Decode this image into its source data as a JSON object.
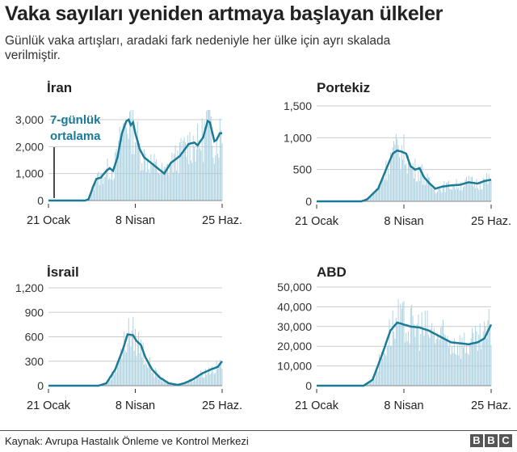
{
  "title": "Vaka sayıları yeniden artmaya başlayan ülkeler",
  "subtitle": "Günlük vaka artışları, aradaki fark nedeniyle her ülke için ayrı skalada verilmiştir.",
  "footer": "Kaynak: Avrupa Hastalık Önleme ve Kontrol Merkezi",
  "logo": [
    "B",
    "B",
    "C"
  ],
  "colors": {
    "line": "#1b7b97",
    "bar": "#a8cfdf",
    "grid": "#cccccc"
  },
  "chart_data": [
    {
      "type": "bar+line",
      "title": "İran",
      "annotation": [
        "7-günlük",
        "ortalama"
      ],
      "x_ticks": [
        "21 Ocak",
        "8 Nisan",
        "25 Haz."
      ],
      "x_tick_days": [
        0,
        78,
        156
      ],
      "yticks": [
        0,
        1000,
        2000,
        3000
      ],
      "ytick_labels": [
        "0",
        "1,000",
        "2,000",
        "3,000"
      ],
      "ylim": [
        0,
        3500
      ],
      "avg": [
        [
          0,
          0
        ],
        [
          33,
          0
        ],
        [
          36,
          50
        ],
        [
          40,
          500
        ],
        [
          43,
          800
        ],
        [
          47,
          850
        ],
        [
          52,
          1100
        ],
        [
          55,
          1200
        ],
        [
          58,
          1100
        ],
        [
          62,
          1600
        ],
        [
          66,
          2500
        ],
        [
          70,
          2950
        ],
        [
          72,
          3000
        ],
        [
          74,
          2800
        ],
        [
          76,
          2900
        ],
        [
          78,
          2500
        ],
        [
          82,
          1900
        ],
        [
          86,
          1600
        ],
        [
          95,
          1300
        ],
        [
          104,
          1000
        ],
        [
          110,
          1400
        ],
        [
          118,
          1650
        ],
        [
          126,
          2100
        ],
        [
          131,
          2150
        ],
        [
          134,
          2050
        ],
        [
          139,
          2350
        ],
        [
          143,
          2950
        ],
        [
          145,
          2900
        ],
        [
          149,
          2200
        ],
        [
          151,
          2250
        ],
        [
          154,
          2500
        ],
        [
          156,
          2500
        ]
      ]
    },
    {
      "type": "bar+line",
      "title": "Portekiz",
      "x_ticks": [
        "21 Ocak",
        "8 Nisan",
        "25 Haz."
      ],
      "x_tick_days": [
        0,
        78,
        156
      ],
      "yticks": [
        0,
        500,
        1000,
        1500
      ],
      "ytick_labels": [
        "0",
        "500",
        "1,000",
        "1,500"
      ],
      "ylim": [
        0,
        1500
      ],
      "avg": [
        [
          0,
          0
        ],
        [
          40,
          0
        ],
        [
          45,
          30
        ],
        [
          55,
          200
        ],
        [
          62,
          500
        ],
        [
          68,
          750
        ],
        [
          72,
          800
        ],
        [
          76,
          780
        ],
        [
          80,
          750
        ],
        [
          84,
          550
        ],
        [
          88,
          500
        ],
        [
          92,
          520
        ],
        [
          96,
          380
        ],
        [
          101,
          280
        ],
        [
          106,
          200
        ],
        [
          112,
          230
        ],
        [
          120,
          250
        ],
        [
          128,
          260
        ],
        [
          136,
          300
        ],
        [
          144,
          280
        ],
        [
          150,
          320
        ],
        [
          156,
          340
        ]
      ]
    },
    {
      "type": "bar+line",
      "title": "İsrail",
      "x_ticks": [
        "21 Ocak",
        "8 Nisan",
        "25 Haz."
      ],
      "x_tick_days": [
        0,
        78,
        156
      ],
      "yticks": [
        0,
        300,
        600,
        900,
        1200
      ],
      "ytick_labels": [
        "0",
        "300",
        "600",
        "900",
        "1,200"
      ],
      "ylim": [
        0,
        1200
      ],
      "avg": [
        [
          0,
          0
        ],
        [
          45,
          0
        ],
        [
          52,
          30
        ],
        [
          60,
          200
        ],
        [
          67,
          450
        ],
        [
          71,
          630
        ],
        [
          76,
          620
        ],
        [
          79,
          550
        ],
        [
          83,
          500
        ],
        [
          87,
          350
        ],
        [
          93,
          200
        ],
        [
          100,
          100
        ],
        [
          108,
          30
        ],
        [
          116,
          10
        ],
        [
          122,
          30
        ],
        [
          130,
          80
        ],
        [
          138,
          150
        ],
        [
          146,
          200
        ],
        [
          152,
          230
        ],
        [
          156,
          300
        ]
      ]
    },
    {
      "type": "bar+line",
      "title": "ABD",
      "x_ticks": [
        "21 Ocak",
        "8 Nisan",
        "25 Haz."
      ],
      "x_tick_days": [
        0,
        78,
        156
      ],
      "yticks": [
        0,
        10000,
        20000,
        30000,
        40000,
        50000
      ],
      "ytick_labels": [
        "0",
        "10,000",
        "20,000",
        "30,000",
        "40,000",
        "50,000"
      ],
      "ylim": [
        0,
        50000
      ],
      "avg": [
        [
          0,
          0
        ],
        [
          42,
          0
        ],
        [
          50,
          3000
        ],
        [
          58,
          15000
        ],
        [
          66,
          28000
        ],
        [
          72,
          32000
        ],
        [
          78,
          31000
        ],
        [
          84,
          30000
        ],
        [
          92,
          29500
        ],
        [
          100,
          28000
        ],
        [
          110,
          25000
        ],
        [
          120,
          22000
        ],
        [
          128,
          21500
        ],
        [
          136,
          21000
        ],
        [
          144,
          22000
        ],
        [
          150,
          24000
        ],
        [
          156,
          31000
        ]
      ]
    }
  ]
}
